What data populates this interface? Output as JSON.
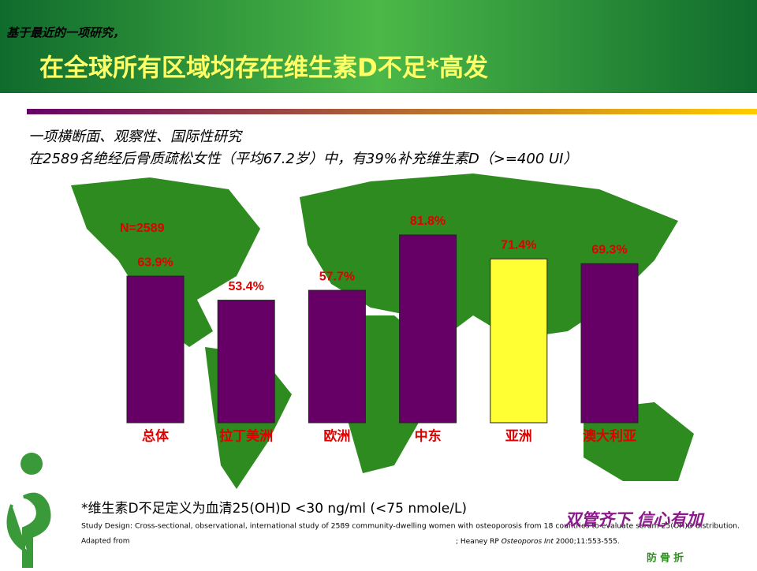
{
  "header": {
    "subtitle": "基于最近的一项研究，",
    "title": "在全球所有区域均存在维生素D不足*高发"
  },
  "intro": [
    "一项横断面、观察性、国际性研究",
    "在2589名绝经后骨质疏松女性（平均67.2岁）中，有39%补充维生素D（>=400 UI）"
  ],
  "chart_data": {
    "type": "bar",
    "annotation": "N=2589",
    "categories": [
      "总体",
      "拉丁美洲",
      "欧洲",
      "中东",
      "亚洲",
      "澳大利亚"
    ],
    "values": [
      63.9,
      53.4,
      57.7,
      81.8,
      71.4,
      69.3
    ],
    "value_labels": [
      "63.9%",
      "53.4%",
      "57.7%",
      "81.8%",
      "71.4%",
      "69.3%"
    ],
    "colors": [
      "#660066",
      "#660066",
      "#660066",
      "#660066",
      "#ffff33",
      "#660066"
    ]
  },
  "footnote": "*维生素D不足定义为血清25(OH)D <30 ng/ml (<75 nmole/L)",
  "study_design": "Study Design: Cross-sectional, observational, international study of 2589 community-dwelling women with osteoporosis from 18 countries to evaluate serum 25(OH)D distribution.",
  "reference": {
    "prefix": "Adapted from",
    "authors": "; Heaney RP",
    "journal": "Osteoporos Int",
    "details": "2000;11:553-555."
  },
  "logo": {
    "slogan": "双管齐下 信心有加",
    "tagline": "防骨折"
  }
}
